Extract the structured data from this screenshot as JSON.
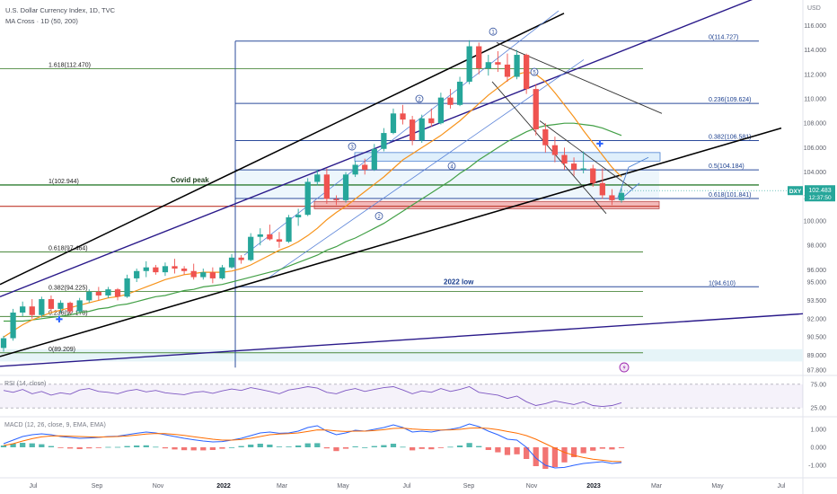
{
  "header": {
    "symbol_title": "U.S. Dollar Currency Index, 1D, TVC",
    "indicator_line": "MA Cross · 1D (50, 200)"
  },
  "price_scale": {
    "title": "USD",
    "ticks": [
      "116.000",
      "114.000",
      "112.000",
      "110.000",
      "108.000",
      "106.000",
      "104.000",
      "102.000",
      "100.000",
      "98.000",
      "96.000",
      "95.000",
      "93.500",
      "92.000",
      "90.500",
      "89.000",
      "87.800"
    ],
    "tick_values": [
      116,
      114,
      112,
      110,
      108,
      106,
      104,
      102,
      100,
      98,
      96,
      95,
      93.5,
      92,
      90.5,
      89,
      87.8
    ],
    "current_symbol": "DXY",
    "current_price": "102.483",
    "countdown": "12:37:50",
    "current_value": 102.483
  },
  "time_axis": {
    "labels": [
      "Jul",
      "Sep",
      "Nov",
      "2022",
      "Mar",
      "May",
      "Jul",
      "Sep",
      "Nov",
      "2023",
      "Mar",
      "May",
      "Jul"
    ],
    "bold_labels": [
      "2022",
      "2023"
    ]
  },
  "colors": {
    "up": "#26a69a",
    "down": "#ef5350",
    "ma_fast": "#f7931a",
    "ma_slow": "#43a047",
    "fib_blue": "#2b4b9b",
    "fib_green": "#4c8a3e",
    "channel_dark_blue": "#2a1a8a",
    "channel_black": "#000000",
    "support_zone": "#d77a7a",
    "rsi_line": "#7e57c2",
    "macd_line": "#2962ff",
    "signal_line": "#ff6d00"
  },
  "chart_data": {
    "type": "candlestick",
    "y_range": [
      87.5,
      117.5
    ],
    "candles": [
      [
        89.6,
        90.6,
        89.3,
        90.4
      ],
      [
        90.4,
        92.8,
        90.2,
        92.5
      ],
      [
        92.5,
        93.4,
        92.2,
        93.0
      ],
      [
        93.0,
        93.6,
        92.0,
        92.3
      ],
      [
        92.3,
        93.8,
        92.1,
        93.6
      ],
      [
        93.6,
        93.9,
        92.6,
        92.8
      ],
      [
        92.8,
        93.5,
        92.5,
        93.3
      ],
      [
        93.3,
        93.4,
        92.4,
        92.6
      ],
      [
        92.6,
        93.7,
        92.5,
        93.5
      ],
      [
        93.5,
        94.4,
        93.3,
        94.2
      ],
      [
        94.2,
        94.6,
        93.5,
        93.9
      ],
      [
        93.9,
        94.6,
        93.7,
        94.4
      ],
      [
        94.4,
        94.5,
        93.5,
        93.8
      ],
      [
        93.8,
        95.6,
        93.7,
        95.3
      ],
      [
        95.3,
        96.1,
        95.0,
        95.9
      ],
      [
        95.9,
        96.7,
        95.4,
        96.2
      ],
      [
        96.2,
        96.4,
        95.6,
        95.8
      ],
      [
        95.8,
        96.6,
        95.5,
        96.3
      ],
      [
        96.3,
        96.9,
        95.7,
        96.1
      ],
      [
        96.1,
        96.3,
        95.6,
        95.9
      ],
      [
        95.9,
        96.5,
        95.2,
        95.4
      ],
      [
        95.4,
        96.1,
        95.2,
        95.8
      ],
      [
        95.8,
        96.2,
        94.9,
        95.3
      ],
      [
        95.3,
        96.4,
        95.2,
        96.2
      ],
      [
        96.2,
        97.3,
        96.1,
        97.0
      ],
      [
        97.0,
        97.2,
        96.5,
        96.8
      ],
      [
        96.8,
        99.0,
        96.7,
        98.7
      ],
      [
        98.7,
        99.4,
        98.0,
        98.9
      ],
      [
        98.9,
        99.7,
        98.4,
        98.5
      ],
      [
        98.5,
        99.1,
        97.8,
        98.3
      ],
      [
        98.3,
        100.5,
        98.2,
        100.3
      ],
      [
        100.3,
        101.0,
        99.6,
        100.5
      ],
      [
        100.5,
        103.5,
        100.4,
        103.2
      ],
      [
        103.2,
        104.2,
        102.9,
        103.8
      ],
      [
        103.8,
        104.3,
        101.4,
        101.8
      ],
      [
        101.8,
        102.1,
        101.3,
        101.7
      ],
      [
        101.7,
        104.0,
        101.5,
        103.8
      ],
      [
        103.8,
        104.9,
        103.6,
        104.6
      ],
      [
        104.6,
        105.1,
        103.8,
        104.2
      ],
      [
        104.2,
        106.3,
        104.1,
        105.9
      ],
      [
        105.9,
        107.6,
        105.7,
        107.2
      ],
      [
        107.2,
        109.2,
        107.1,
        108.8
      ],
      [
        108.8,
        109.5,
        107.9,
        108.3
      ],
      [
        108.3,
        108.6,
        106.2,
        106.6
      ],
      [
        106.6,
        108.7,
        106.4,
        108.4
      ],
      [
        108.4,
        109.2,
        107.7,
        108.0
      ],
      [
        108.0,
        110.5,
        107.9,
        110.1
      ],
      [
        110.1,
        110.8,
        109.2,
        109.5
      ],
      [
        109.5,
        111.8,
        109.4,
        111.4
      ],
      [
        111.4,
        114.8,
        111.2,
        114.3
      ],
      [
        114.3,
        114.6,
        112.0,
        112.5
      ],
      [
        112.5,
        113.6,
        111.9,
        113.0
      ],
      [
        113.0,
        113.9,
        112.2,
        112.8
      ],
      [
        112.8,
        113.7,
        111.4,
        111.8
      ],
      [
        111.8,
        114.0,
        111.6,
        113.6
      ],
      [
        113.6,
        113.7,
        110.4,
        110.8
      ],
      [
        110.8,
        111.2,
        107.0,
        107.5
      ],
      [
        107.5,
        108.0,
        105.6,
        106.2
      ],
      [
        106.2,
        106.9,
        104.8,
        105.4
      ],
      [
        105.4,
        106.0,
        104.2,
        104.7
      ],
      [
        104.7,
        105.2,
        103.7,
        104.2
      ],
      [
        104.2,
        105.7,
        103.9,
        104.3
      ],
      [
        104.3,
        104.6,
        102.8,
        103.1
      ],
      [
        103.1,
        104.3,
        101.8,
        102.1
      ],
      [
        102.1,
        102.6,
        101.3,
        101.7
      ],
      [
        101.7,
        102.7,
        101.5,
        102.3
      ]
    ],
    "ma_fast": [
      90.5,
      91.0,
      91.5,
      91.9,
      92.2,
      92.5,
      92.7,
      92.9,
      93.1,
      93.3,
      93.5,
      93.7,
      93.8,
      94.0,
      94.3,
      94.6,
      94.9,
      95.2,
      95.4,
      95.6,
      95.7,
      95.8,
      95.8,
      95.8,
      95.9,
      96.1,
      96.4,
      96.8,
      97.2,
      97.6,
      97.9,
      98.3,
      98.8,
      99.4,
      100.1,
      100.7,
      101.2,
      101.8,
      102.4,
      103.0,
      103.6,
      104.3,
      105.0,
      105.5,
      106.0,
      106.5,
      107.0,
      107.6,
      108.2,
      108.9,
      109.6,
      110.3,
      110.9,
      111.5,
      112.0,
      112.2,
      112.0,
      111.4,
      110.5,
      109.5,
      108.5,
      107.4,
      106.4,
      105.4,
      104.4,
      103.6
    ],
    "ma_slow": [
      91.8,
      91.8,
      91.8,
      91.9,
      92.0,
      92.1,
      92.2,
      92.3,
      92.5,
      92.6,
      92.8,
      92.9,
      93.1,
      93.2,
      93.4,
      93.6,
      93.8,
      93.9,
      94.1,
      94.3,
      94.4,
      94.6,
      94.7,
      94.8,
      95.0,
      95.2,
      95.4,
      95.6,
      95.8,
      96.0,
      96.3,
      96.6,
      96.9,
      97.2,
      97.6,
      97.9,
      98.3,
      98.6,
      99.0,
      99.4,
      99.8,
      100.3,
      100.8,
      101.3,
      101.8,
      102.3,
      102.8,
      103.3,
      103.9,
      104.4,
      105.0,
      105.5,
      106.0,
      106.5,
      106.9,
      107.3,
      107.6,
      107.8,
      107.9,
      108.0,
      108.0,
      107.9,
      107.8,
      107.6,
      107.3,
      107.0
    ],
    "fibonacci": [
      {
        "label": "0(114.727)",
        "value": 114.727
      },
      {
        "label": "0.236(109.624)",
        "value": 109.624
      },
      {
        "label": "0.382(106.581)",
        "value": 106.581
      },
      {
        "label": "0.5(104.184)",
        "value": 104.184
      },
      {
        "label": "0.618(101.841)",
        "value": 101.841
      },
      {
        "label": "1(94.610)",
        "value": 94.61
      }
    ],
    "fibonacci_left": [
      {
        "label": "1.618(112.470)",
        "value": 112.47
      },
      {
        "label": "1(102.944)",
        "value": 102.944
      },
      {
        "label": "0.618(97.464)",
        "value": 97.464
      },
      {
        "label": "0.382(94.225)",
        "value": 94.225
      },
      {
        "label": "0.236(92.178)",
        "value": 92.178
      },
      {
        "label": "0(89.209)",
        "value": 89.209
      }
    ],
    "annotations": {
      "covid_peak": "Covid peak",
      "low_2022": "2022 low",
      "wave_labels": [
        "1",
        "2",
        "3",
        "4",
        "5",
        "1",
        "2"
      ]
    },
    "rsi": {
      "label": "RSI (14, close)",
      "ticks": [
        "75.00",
        "25.00"
      ],
      "tick_values": [
        75,
        25
      ],
      "values": [
        62,
        58,
        64,
        55,
        60,
        52,
        57,
        54,
        63,
        66,
        60,
        58,
        55,
        61,
        64,
        59,
        62,
        57,
        55,
        53,
        58,
        60,
        56,
        61,
        65,
        62,
        68,
        64,
        60,
        55,
        63,
        66,
        70,
        67,
        58,
        55,
        62,
        66,
        60,
        64,
        68,
        70,
        63,
        55,
        61,
        58,
        66,
        60,
        64,
        70,
        58,
        55,
        52,
        45,
        50,
        38,
        30,
        34,
        40,
        36,
        32,
        38,
        30,
        28,
        30,
        36
      ],
      "range": [
        10,
        90
      ]
    },
    "macd": {
      "label": "MACD (12, 26, close, 9, EMA, EMA)",
      "ticks": [
        "1.000",
        "0.000",
        "-1.000"
      ],
      "tick_values": [
        1,
        0,
        -1
      ],
      "macd_line": [
        0.2,
        0.4,
        0.6,
        0.7,
        0.75,
        0.7,
        0.6,
        0.55,
        0.5,
        0.52,
        0.55,
        0.6,
        0.62,
        0.7,
        0.78,
        0.85,
        0.8,
        0.7,
        0.6,
        0.5,
        0.42,
        0.35,
        0.3,
        0.32,
        0.4,
        0.5,
        0.65,
        0.8,
        0.85,
        0.78,
        0.8,
        0.9,
        1.1,
        1.2,
        0.9,
        0.7,
        0.8,
        0.95,
        0.9,
        1.0,
        1.1,
        1.25,
        1.1,
        0.85,
        0.9,
        0.85,
        0.95,
        1.0,
        1.1,
        1.3,
        1.15,
        0.9,
        0.7,
        0.45,
        0.4,
        0.0,
        -0.6,
        -1.0,
        -1.15,
        -1.12,
        -1.0,
        -0.9,
        -0.85,
        -0.8,
        -0.9,
        -0.85
      ],
      "signal_line": [
        0.1,
        0.2,
        0.35,
        0.48,
        0.58,
        0.63,
        0.64,
        0.62,
        0.6,
        0.58,
        0.57,
        0.58,
        0.6,
        0.63,
        0.68,
        0.74,
        0.77,
        0.76,
        0.72,
        0.66,
        0.59,
        0.52,
        0.45,
        0.4,
        0.4,
        0.43,
        0.5,
        0.6,
        0.7,
        0.74,
        0.76,
        0.8,
        0.88,
        0.97,
        0.96,
        0.91,
        0.88,
        0.9,
        0.9,
        0.93,
        0.98,
        1.05,
        1.07,
        1.02,
        0.99,
        0.96,
        0.96,
        0.97,
        1.0,
        1.06,
        1.08,
        1.05,
        0.98,
        0.88,
        0.79,
        0.65,
        0.45,
        0.2,
        -0.05,
        -0.28,
        -0.45,
        -0.57,
        -0.66,
        -0.72,
        -0.78,
        -0.8
      ],
      "range": [
        -1.6,
        1.6
      ]
    }
  }
}
